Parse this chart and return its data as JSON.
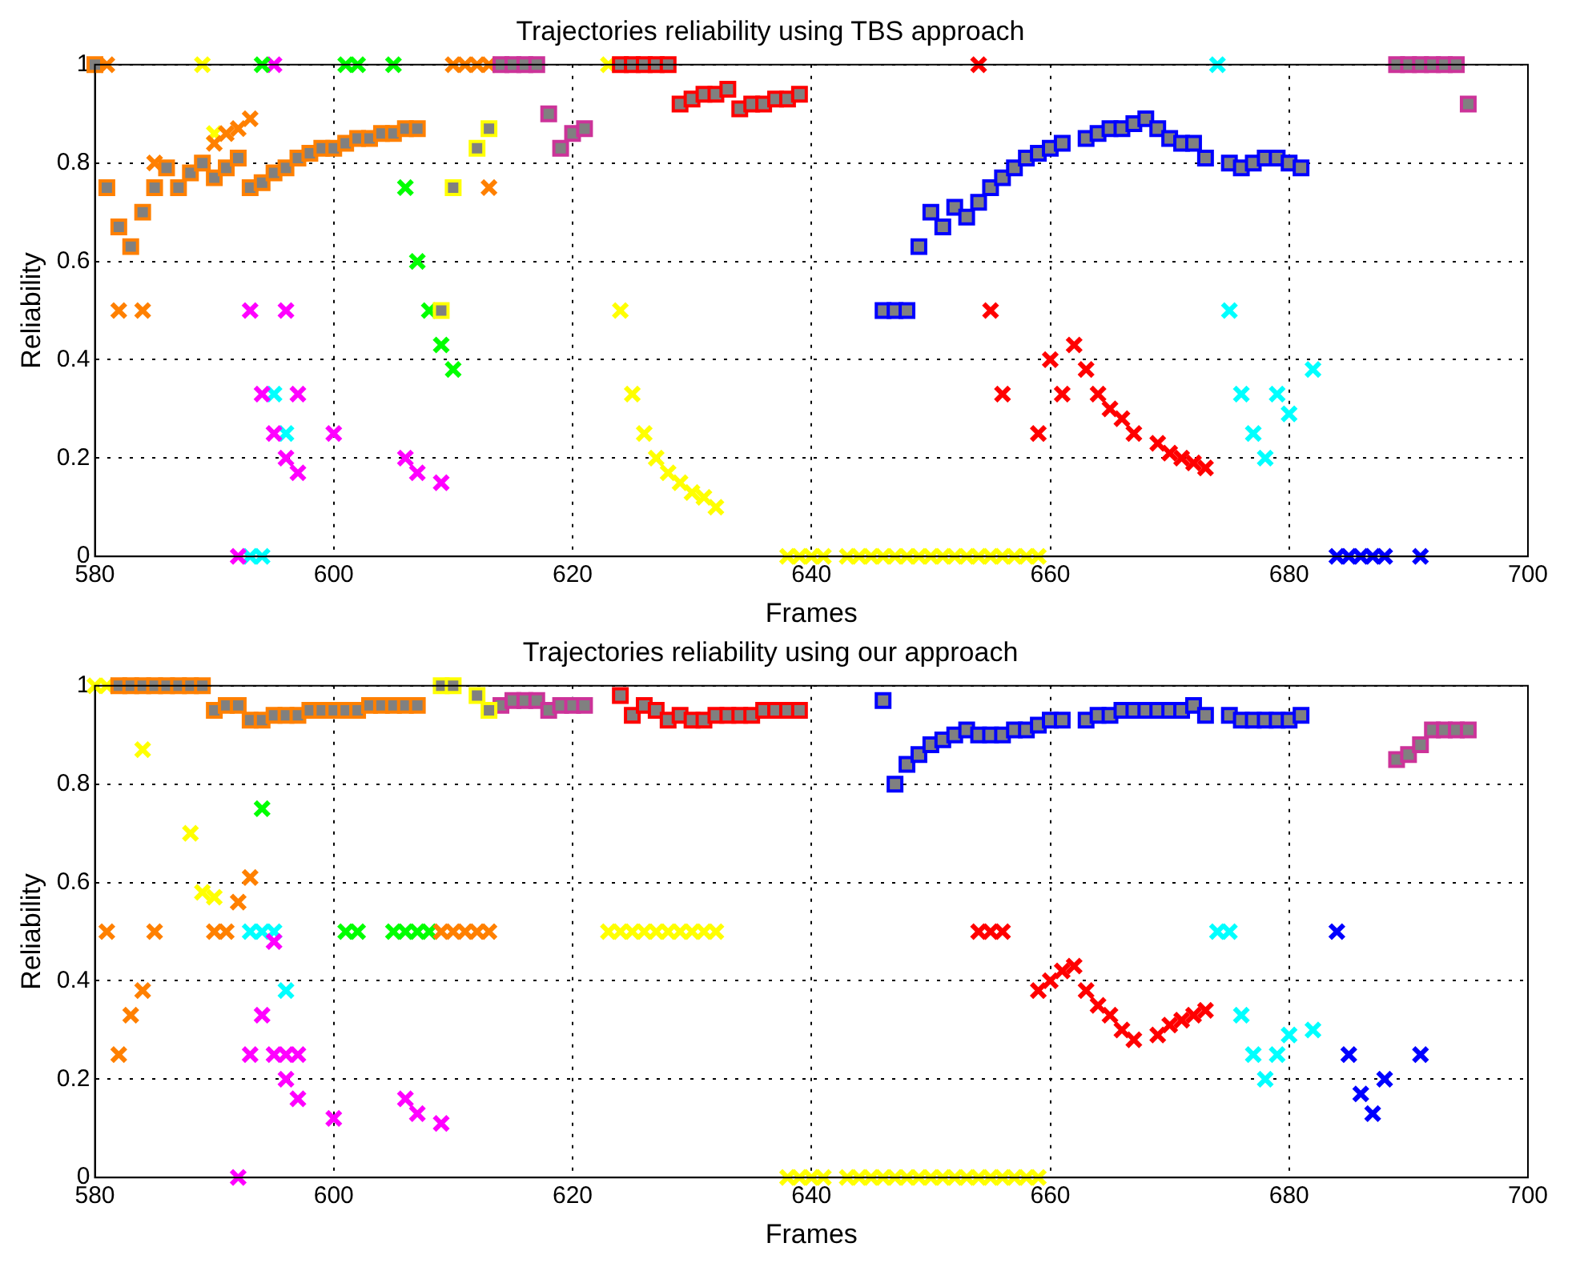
{
  "chart_data": [
    {
      "type": "scatter",
      "title": "Trajectories reliability using TBS approach",
      "xlabel": "Frames",
      "ylabel": "Reliability",
      "xlim": [
        580,
        700
      ],
      "xticks": [
        580,
        600,
        620,
        640,
        660,
        680,
        700
      ],
      "ylim": [
        0,
        1
      ],
      "yticks": [
        0,
        0.2,
        0.4,
        0.6,
        0.8,
        1
      ],
      "grid": true,
      "series": [
        {
          "marker": "square",
          "color": "#ff8000",
          "x": [
            580,
            581,
            582,
            583,
            584,
            585,
            586,
            587,
            588,
            589,
            590,
            591,
            592,
            593,
            594,
            595,
            596,
            597,
            598,
            599,
            600,
            601,
            602,
            603,
            604,
            605,
            606,
            607
          ],
          "values": [
            1,
            0.75,
            0.67,
            0.63,
            0.7,
            0.75,
            0.79,
            0.75,
            0.78,
            0.8,
            0.77,
            0.79,
            0.81,
            0.75,
            0.76,
            0.78,
            0.79,
            0.81,
            0.82,
            0.83,
            0.83,
            0.84,
            0.85,
            0.85,
            0.86,
            0.86,
            0.87,
            0.87
          ]
        },
        {
          "marker": "square",
          "color": "#ffff00",
          "x": [
            609,
            610,
            612,
            613
          ],
          "values": [
            0.5,
            0.75,
            0.83,
            0.87
          ]
        },
        {
          "marker": "square",
          "color": "#cc3399",
          "x": [
            614,
            615,
            616,
            617,
            618,
            619,
            620,
            621,
            689,
            690,
            691,
            692,
            693,
            694,
            695
          ],
          "values": [
            1,
            1,
            1,
            1,
            0.9,
            0.83,
            0.86,
            0.87,
            1,
            1,
            1,
            1,
            1,
            1,
            0.92
          ]
        },
        {
          "marker": "square",
          "color": "#ff0000",
          "x": [
            624,
            625,
            626,
            627,
            628,
            629,
            630,
            631,
            632,
            633,
            634,
            635,
            636,
            637,
            638,
            639
          ],
          "values": [
            1,
            1,
            1,
            1,
            1,
            0.92,
            0.93,
            0.94,
            0.94,
            0.95,
            0.91,
            0.92,
            0.92,
            0.93,
            0.93,
            0.94
          ]
        },
        {
          "marker": "square",
          "color": "#0000ff",
          "x": [
            646,
            647,
            648,
            649,
            650,
            651,
            652,
            653,
            654,
            655,
            656,
            657,
            658,
            659,
            660,
            661,
            663,
            664,
            665,
            666,
            667,
            668,
            669,
            670,
            671,
            672,
            673,
            675,
            676,
            677,
            678,
            679,
            680,
            681
          ],
          "values": [
            0.5,
            0.5,
            0.5,
            0.63,
            0.7,
            0.67,
            0.71,
            0.69,
            0.72,
            0.75,
            0.77,
            0.79,
            0.81,
            0.82,
            0.83,
            0.84,
            0.85,
            0.86,
            0.87,
            0.87,
            0.88,
            0.89,
            0.87,
            0.85,
            0.84,
            0.84,
            0.81,
            0.8,
            0.79,
            0.8,
            0.81,
            0.81,
            0.8,
            0.79
          ]
        },
        {
          "marker": "cross",
          "color": "#ff8000",
          "x": [
            581,
            582,
            584,
            585,
            590,
            591,
            592,
            593,
            610,
            611,
            612,
            613,
            613
          ],
          "values": [
            1,
            0.5,
            0.5,
            0.8,
            0.84,
            0.86,
            0.87,
            0.89,
            1,
            1,
            1,
            1,
            0.75
          ]
        },
        {
          "marker": "cross",
          "color": "#ffff00",
          "x": [
            589,
            590,
            623,
            624,
            625,
            626,
            627,
            628,
            629,
            630,
            631,
            632,
            638,
            639,
            640,
            641,
            643,
            644,
            645,
            646,
            647,
            648,
            649,
            650,
            651,
            652,
            653,
            654,
            655,
            656,
            657,
            658,
            659
          ],
          "values": [
            1,
            0.86,
            1,
            0.5,
            0.33,
            0.25,
            0.2,
            0.17,
            0.15,
            0.13,
            0.12,
            0.1,
            0,
            0,
            0,
            0,
            0,
            0,
            0,
            0,
            0,
            0,
            0,
            0,
            0,
            0,
            0,
            0,
            0,
            0,
            0,
            0,
            0
          ]
        },
        {
          "marker": "cross",
          "color": "#00ff00",
          "x": [
            594,
            601,
            602,
            605,
            606,
            607,
            608,
            609,
            610
          ],
          "values": [
            1,
            1,
            1,
            1,
            0.75,
            0.6,
            0.5,
            0.43,
            0.38
          ]
        },
        {
          "marker": "cross",
          "color": "#ff00ff",
          "x": [
            592,
            593,
            594,
            595,
            595,
            596,
            596,
            597,
            597,
            600,
            606,
            607,
            609
          ],
          "values": [
            0,
            0.5,
            0.33,
            1,
            0.25,
            0.5,
            0.2,
            0.33,
            0.17,
            0.25,
            0.2,
            0.17,
            0.15
          ]
        },
        {
          "marker": "cross",
          "color": "#00ffff",
          "x": [
            593,
            594,
            595,
            596,
            674,
            675,
            676,
            677,
            678,
            679,
            680,
            682
          ],
          "values": [
            0,
            0,
            0.33,
            0.25,
            1,
            0.5,
            0.33,
            0.25,
            0.2,
            0.33,
            0.29,
            0.38
          ]
        },
        {
          "marker": "cross",
          "color": "#ff0000",
          "x": [
            654,
            655,
            656,
            659,
            660,
            661,
            662,
            663,
            664,
            665,
            666,
            667,
            669,
            670,
            671,
            672,
            673
          ],
          "values": [
            1,
            0.5,
            0.33,
            0.25,
            0.4,
            0.33,
            0.43,
            0.38,
            0.33,
            0.3,
            0.28,
            0.25,
            0.23,
            0.21,
            0.2,
            0.19,
            0.18
          ]
        },
        {
          "marker": "cross",
          "color": "#0000ff",
          "x": [
            684,
            685,
            686,
            687,
            688,
            691
          ],
          "values": [
            0,
            0,
            0,
            0,
            0,
            0
          ]
        }
      ]
    },
    {
      "type": "scatter",
      "title": "Trajectories reliability using our approach",
      "xlabel": "Frames",
      "ylabel": "Reliability",
      "xlim": [
        580,
        700
      ],
      "xticks": [
        580,
        600,
        620,
        640,
        660,
        680,
        700
      ],
      "ylim": [
        0,
        1
      ],
      "yticks": [
        0,
        0.2,
        0.4,
        0.6,
        0.8,
        1
      ],
      "grid": true,
      "series": [
        {
          "marker": "square",
          "color": "#ff8000",
          "x": [
            582,
            583,
            584,
            585,
            586,
            587,
            588,
            589,
            590,
            591,
            592,
            593,
            594,
            595,
            596,
            597,
            598,
            599,
            600,
            601,
            602,
            603,
            604,
            605,
            606,
            607
          ],
          "values": [
            1,
            1,
            1,
            1,
            1,
            1,
            1,
            1,
            0.95,
            0.96,
            0.96,
            0.93,
            0.93,
            0.94,
            0.94,
            0.94,
            0.95,
            0.95,
            0.95,
            0.95,
            0.95,
            0.96,
            0.96,
            0.96,
            0.96,
            0.96
          ]
        },
        {
          "marker": "square",
          "color": "#ffff00",
          "x": [
            609,
            610,
            612,
            613
          ],
          "values": [
            1,
            1,
            0.98,
            0.95
          ]
        },
        {
          "marker": "square",
          "color": "#cc3399",
          "x": [
            614,
            615,
            616,
            617,
            618,
            619,
            620,
            621,
            689,
            690,
            691,
            692,
            693,
            694,
            695
          ],
          "values": [
            0.96,
            0.97,
            0.97,
            0.97,
            0.95,
            0.96,
            0.96,
            0.96,
            0.85,
            0.86,
            0.88,
            0.91,
            0.91,
            0.91,
            0.91
          ]
        },
        {
          "marker": "square",
          "color": "#ff0000",
          "x": [
            624,
            625,
            626,
            627,
            628,
            629,
            630,
            631,
            632,
            633,
            634,
            635,
            636,
            637,
            638,
            639
          ],
          "values": [
            0.98,
            0.94,
            0.96,
            0.95,
            0.93,
            0.94,
            0.93,
            0.93,
            0.94,
            0.94,
            0.94,
            0.94,
            0.95,
            0.95,
            0.95,
            0.95
          ]
        },
        {
          "marker": "square",
          "color": "#0000ff",
          "x": [
            646,
            647,
            648,
            649,
            650,
            651,
            652,
            653,
            654,
            655,
            656,
            657,
            658,
            659,
            660,
            661,
            663,
            664,
            665,
            666,
            667,
            668,
            669,
            670,
            671,
            672,
            673,
            675,
            676,
            677,
            678,
            679,
            680,
            681
          ],
          "values": [
            0.97,
            0.8,
            0.84,
            0.86,
            0.88,
            0.89,
            0.9,
            0.91,
            0.9,
            0.9,
            0.9,
            0.91,
            0.91,
            0.92,
            0.93,
            0.93,
            0.93,
            0.94,
            0.94,
            0.95,
            0.95,
            0.95,
            0.95,
            0.95,
            0.95,
            0.96,
            0.94,
            0.94,
            0.93,
            0.93,
            0.93,
            0.93,
            0.93,
            0.94
          ]
        },
        {
          "marker": "cross",
          "color": "#ff8000",
          "x": [
            581,
            582,
            583,
            584,
            585,
            590,
            591,
            592,
            593,
            609,
            610,
            611,
            612,
            613
          ],
          "values": [
            0.5,
            0.25,
            0.33,
            0.38,
            0.5,
            0.5,
            0.5,
            0.56,
            0.61,
            0.5,
            0.5,
            0.5,
            0.5,
            0.5
          ]
        },
        {
          "marker": "cross",
          "color": "#ffff00",
          "x": [
            580,
            581,
            584,
            588,
            589,
            590,
            623,
            624,
            625,
            626,
            627,
            628,
            629,
            630,
            631,
            632,
            638,
            639,
            640,
            641,
            643,
            644,
            645,
            646,
            647,
            648,
            649,
            650,
            651,
            652,
            653,
            654,
            655,
            656,
            657,
            658,
            659
          ],
          "values": [
            1,
            1,
            0.87,
            0.7,
            0.58,
            0.57,
            0.5,
            0.5,
            0.5,
            0.5,
            0.5,
            0.5,
            0.5,
            0.5,
            0.5,
            0.5,
            0,
            0,
            0,
            0,
            0,
            0,
            0,
            0,
            0,
            0,
            0,
            0,
            0,
            0,
            0,
            0,
            0,
            0,
            0,
            0,
            0
          ]
        },
        {
          "marker": "cross",
          "color": "#00ff00",
          "x": [
            594,
            601,
            602,
            605,
            606,
            607,
            608
          ],
          "values": [
            0.75,
            0.5,
            0.5,
            0.5,
            0.5,
            0.5,
            0.5
          ]
        },
        {
          "marker": "cross",
          "color": "#ff00ff",
          "x": [
            592,
            593,
            594,
            595,
            595,
            596,
            596,
            597,
            597,
            600,
            606,
            607,
            609
          ],
          "values": [
            0,
            0.25,
            0.33,
            0.48,
            0.25,
            0.25,
            0.2,
            0.25,
            0.16,
            0.12,
            0.16,
            0.13,
            0.11
          ]
        },
        {
          "marker": "cross",
          "color": "#00ffff",
          "x": [
            593,
            594,
            595,
            596,
            674,
            675,
            676,
            677,
            678,
            679,
            680,
            682
          ],
          "values": [
            0.5,
            0.5,
            0.5,
            0.38,
            0.5,
            0.5,
            0.33,
            0.25,
            0.2,
            0.25,
            0.29,
            0.3
          ]
        },
        {
          "marker": "cross",
          "color": "#ff0000",
          "x": [
            654,
            655,
            656,
            659,
            660,
            661,
            662,
            663,
            664,
            665,
            666,
            667,
            669,
            670,
            671,
            672,
            673
          ],
          "values": [
            0.5,
            0.5,
            0.5,
            0.38,
            0.4,
            0.42,
            0.43,
            0.38,
            0.35,
            0.33,
            0.3,
            0.28,
            0.29,
            0.31,
            0.32,
            0.33,
            0.34
          ]
        },
        {
          "marker": "cross",
          "color": "#0000ff",
          "x": [
            684,
            685,
            686,
            687,
            688,
            691
          ],
          "values": [
            0.5,
            0.25,
            0.17,
            0.13,
            0.2,
            0.25
          ]
        }
      ]
    }
  ]
}
